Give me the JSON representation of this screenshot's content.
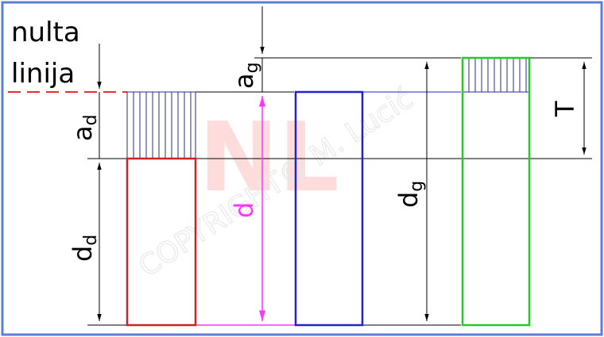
{
  "labels": {
    "zero_line_line1": "nulta",
    "zero_line_line2": "linija",
    "a_g": "a",
    "a_g_sub": "g",
    "a_d": "a",
    "a_d_sub": "d",
    "d_d": "d",
    "d_d_sub": "d",
    "d": "d",
    "d_g": "d",
    "d_g_sub": "g",
    "T": "T"
  },
  "watermark": {
    "logo": "NL",
    "text": "COPYRIGHT© M. Lucić"
  },
  "colors": {
    "border": "#5b7fd6",
    "zero_line": "#e03030",
    "hole_box": "#cc2222",
    "d_box": "#2222cc",
    "shaft_box": "#22cc22",
    "d_arrow": "#ff33ff",
    "hatch": "#2a2a9a",
    "dimension": "#000000"
  }
}
